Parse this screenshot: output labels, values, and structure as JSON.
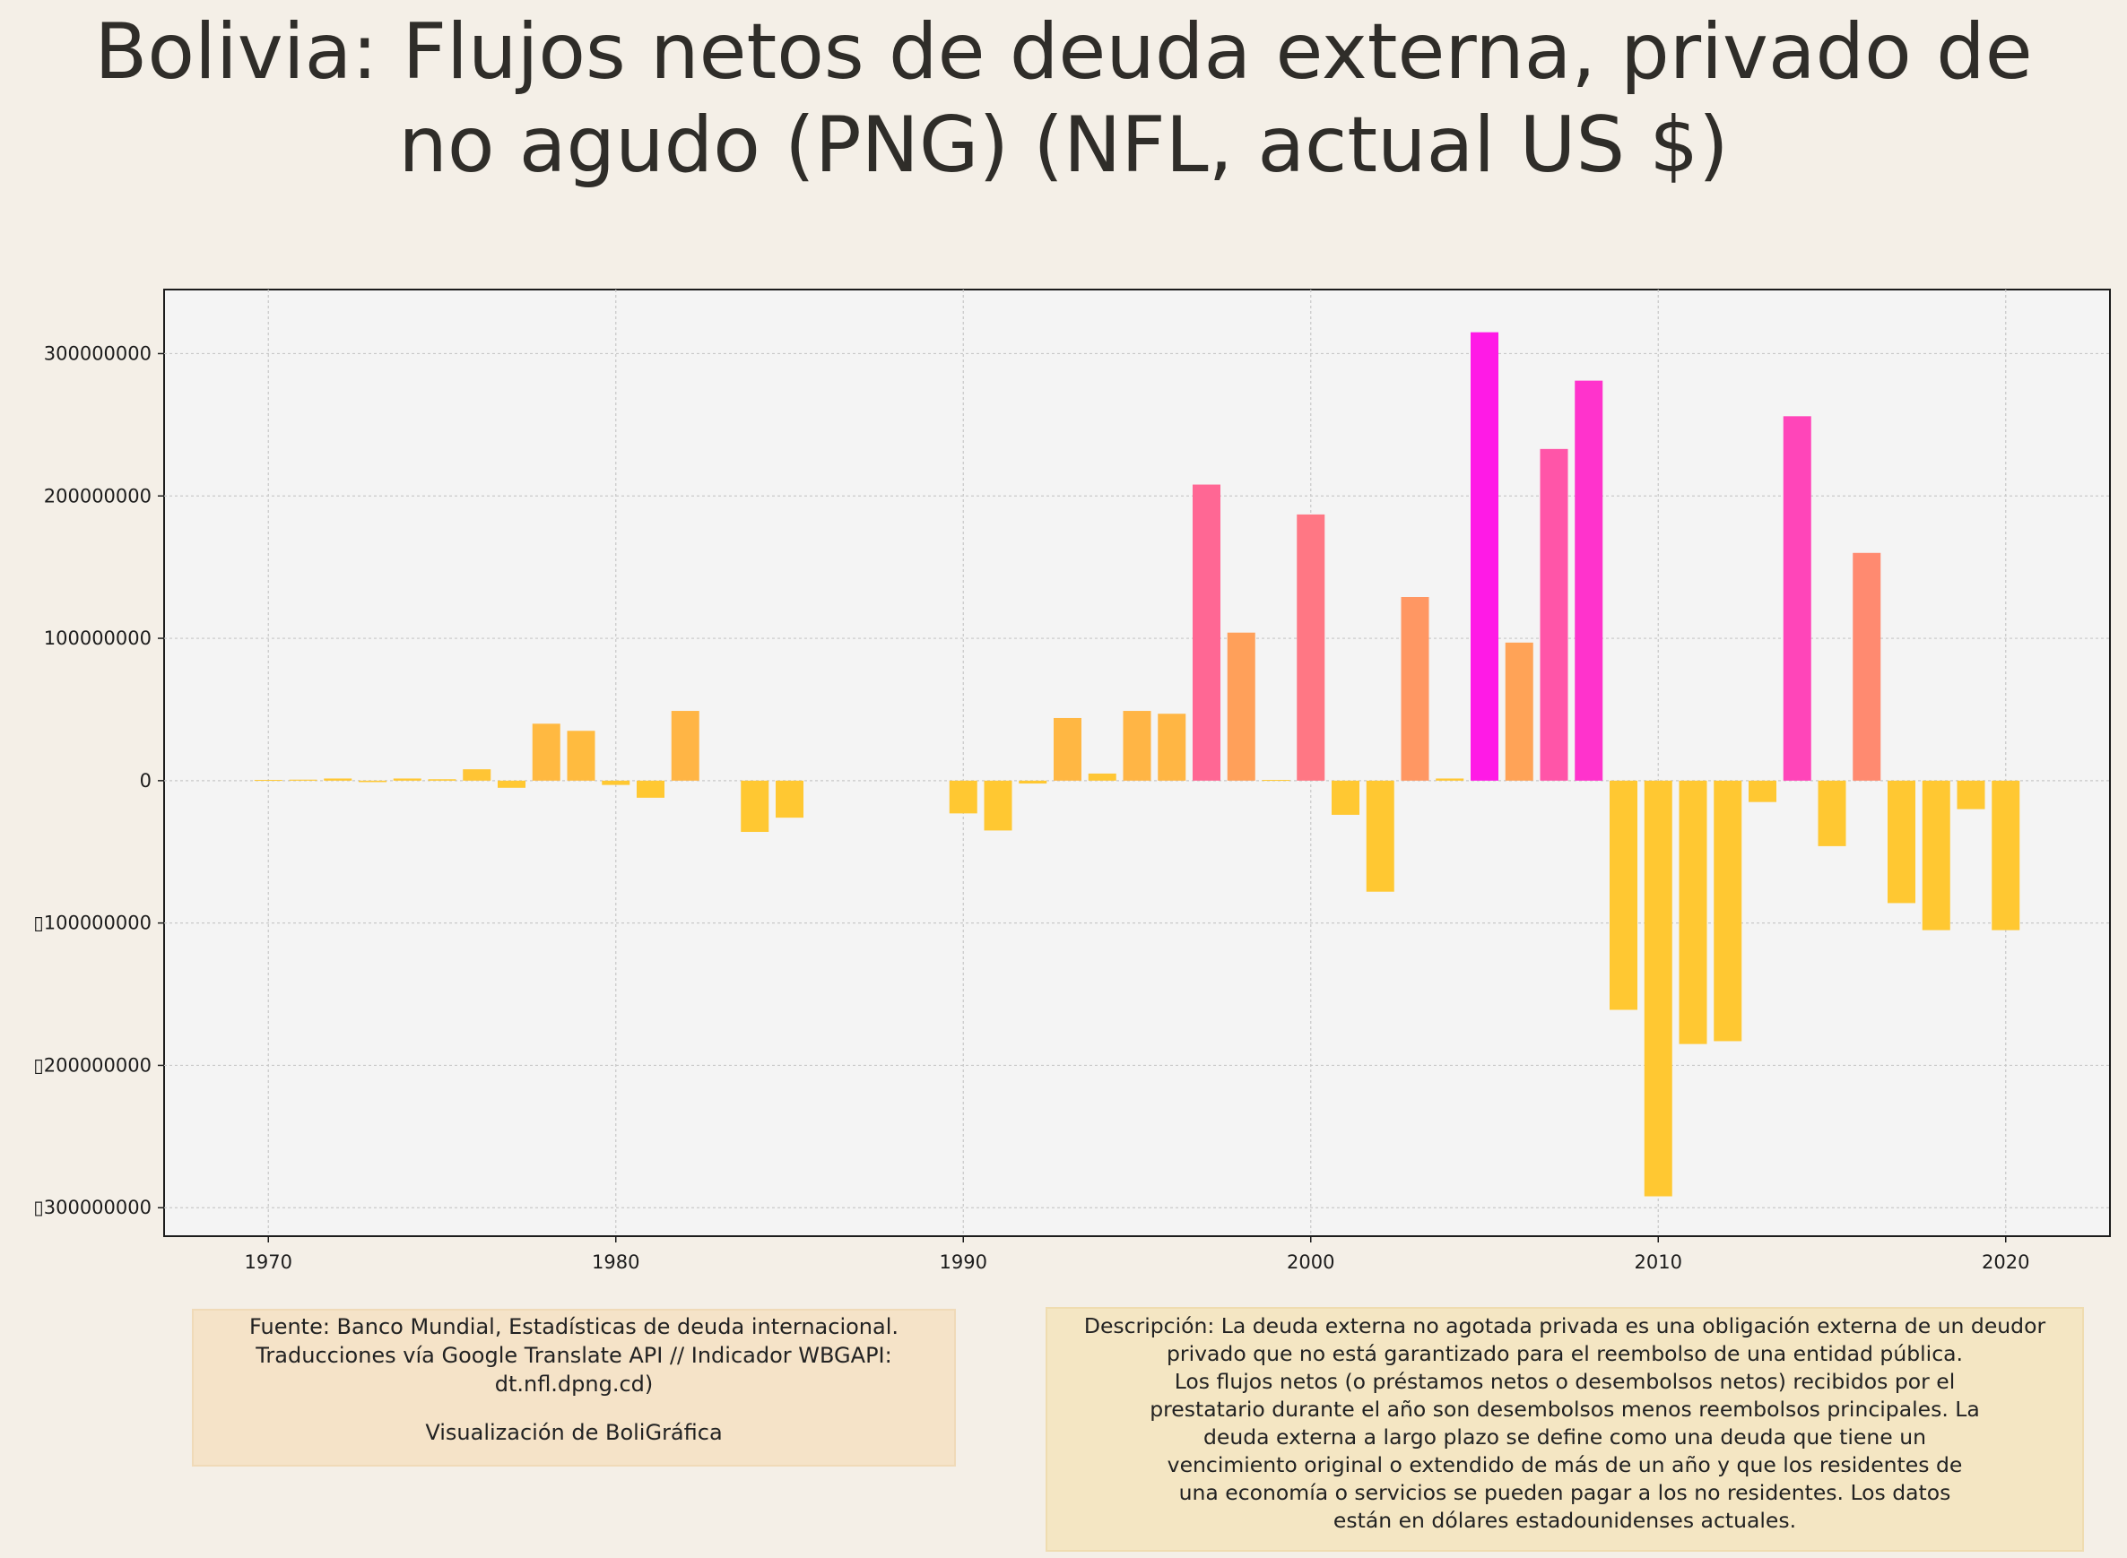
{
  "title_line1": "Bolivia:  Flujos netos de deuda externa, privado de",
  "title_line2": "no agudo (PNG) (NFL, actual US $)",
  "source": {
    "line1": "Fuente: Banco Mundial, Estadísticas de deuda internacional.",
    "line2": "Traducciones vía Google Translate API // Indicador WBGAPI:",
    "line3": "dt.nfl.dpng.cd)",
    "credit": "Visualización de BoliGráfica"
  },
  "description": {
    "lines": [
      "Descripción: La deuda externa no agotada privada es una obligación externa de un deudor",
      "privado que no está garantizado para el reembolso de una entidad pública.",
      "Los flujos netos (o préstamos netos o desembolsos netos) recibidos por el",
      "prestatario durante el año son desembolsos menos reembolsos principales. La",
      "deuda externa a largo plazo se define como una deuda que tiene un",
      "vencimiento original o extendido de más de un año y que los residentes de",
      "una economía o servicios se pueden pagar a los no residentes. Los datos",
      "están en dólares estadounidenses actuales."
    ]
  },
  "chart_data": {
    "type": "bar",
    "title": "Bolivia:  Flujos netos de deuda externa, privado de no agudo (PNG) (NFL, actual US $)",
    "xlabel": "",
    "ylabel": "",
    "x_ticks": [
      1970,
      1980,
      1990,
      2000,
      2010,
      2020
    ],
    "y_ticks": [
      300000000,
      200000000,
      100000000,
      0,
      -100000000,
      -200000000,
      -300000000
    ],
    "y_tick_labels": [
      "300000000",
      "200000000",
      "100000000",
      "0",
      "▯100000000",
      "▯200000000",
      "▯300000000"
    ],
    "xlim": [
      1967,
      2023
    ],
    "ylim": [
      -320000000,
      345000000
    ],
    "grid": true,
    "color_scale": {
      "low": "#ffc832",
      "mid": "#ff8c6e",
      "high": "#ff1ae6"
    },
    "x": [
      1970,
      1971,
      1972,
      1973,
      1974,
      1975,
      1976,
      1977,
      1978,
      1979,
      1980,
      1981,
      1982,
      1984,
      1985,
      1990,
      1991,
      1992,
      1993,
      1994,
      1995,
      1996,
      1997,
      1998,
      1999,
      2000,
      2001,
      2002,
      2003,
      2004,
      2005,
      2006,
      2007,
      2008,
      2009,
      2010,
      2011,
      2012,
      2013,
      2014,
      2015,
      2016,
      2017,
      2018,
      2019,
      2020
    ],
    "values": [
      500000,
      700000,
      1500000,
      -1000000,
      1500000,
      1000000,
      8000000,
      -5000000,
      40000000,
      35000000,
      -3000000,
      -12000000,
      49000000,
      -36000000,
      -26000000,
      -23000000,
      -35000000,
      -2000000,
      44000000,
      5000000,
      49000000,
      47000000,
      208000000,
      104000000,
      500000,
      187000000,
      -24000000,
      -78000000,
      129000000,
      1500000,
      315000000,
      97000000,
      233000000,
      281000000,
      -161000000,
      -292000000,
      -185000000,
      -183000000,
      -15000000,
      256000000,
      -46000000,
      160000000,
      -86000000,
      -105000000,
      -20000000,
      -105000000
    ]
  }
}
